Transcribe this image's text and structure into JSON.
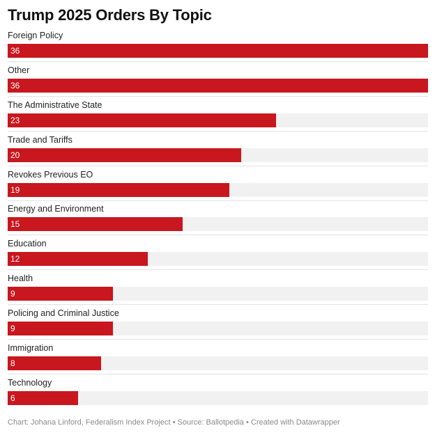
{
  "title": "Trump 2025 Orders By Topic",
  "footer": "Chart: Johana Linford, Federalism Index Project • Source: Ballotpedia • Created with Datawrapper",
  "colors": {
    "bar": "#c8171e",
    "track": "#f1f1f1"
  },
  "chart_data": {
    "type": "bar",
    "orientation": "horizontal",
    "title": "Trump 2025 Orders By Topic",
    "categories": [
      "Foreign Policy",
      "Other",
      "The Administrative State",
      "Trade and Tariffs",
      "Revokes Previous EO",
      "Energy and Environment",
      "Education",
      "Health",
      "Policing and Criminal Justice",
      "Immigration",
      "Technology"
    ],
    "values": [
      36,
      36,
      23,
      20,
      19,
      15,
      12,
      9,
      9,
      8,
      6
    ],
    "xlim": [
      0,
      36
    ],
    "grid": false,
    "legend": "none"
  }
}
